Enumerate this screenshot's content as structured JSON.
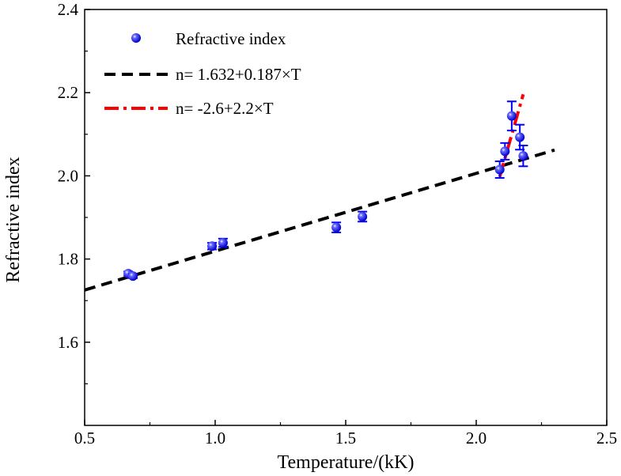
{
  "chart_data": {
    "type": "scatter",
    "title": "",
    "xlabel": "Temperature/(kK)",
    "ylabel": "Refractive index",
    "xlim": [
      0.5,
      2.5
    ],
    "ylim": [
      1.4,
      2.4
    ],
    "xticks": [
      "0.5",
      "1.0",
      "1.5",
      "2.0",
      "2.5"
    ],
    "yticks": [
      "1.6",
      "1.8",
      "2.0",
      "2.2",
      "2.4"
    ],
    "grid": false,
    "legend_position": "top-left",
    "series": [
      {
        "name": "Refractive index",
        "kind": "scatter-errorbar",
        "color": "#0000ff",
        "x": [
          0.667,
          0.685,
          0.988,
          1.03,
          1.464,
          1.564,
          2.09,
          2.11,
          2.136,
          2.167,
          2.18
        ],
        "y": [
          1.765,
          1.759,
          1.831,
          1.839,
          1.876,
          1.902,
          2.015,
          2.059,
          2.144,
          2.093,
          2.048
        ],
        "err": [
          0.005,
          0.005,
          0.008,
          0.01,
          0.012,
          0.012,
          0.02,
          0.02,
          0.035,
          0.03,
          0.025
        ]
      },
      {
        "name": "n= 1.632+0.187×T",
        "kind": "line",
        "style": "dashed",
        "color": "#000000",
        "intercept": 1.632,
        "slope": 0.187,
        "x_range": [
          0.5,
          2.3
        ]
      },
      {
        "name": "n= -2.6+2.2×T",
        "kind": "line",
        "style": "dash-dot",
        "color": "#ff0000",
        "intercept": -2.6,
        "slope": 2.2,
        "x_range": [
          2.09,
          2.18
        ]
      }
    ]
  }
}
